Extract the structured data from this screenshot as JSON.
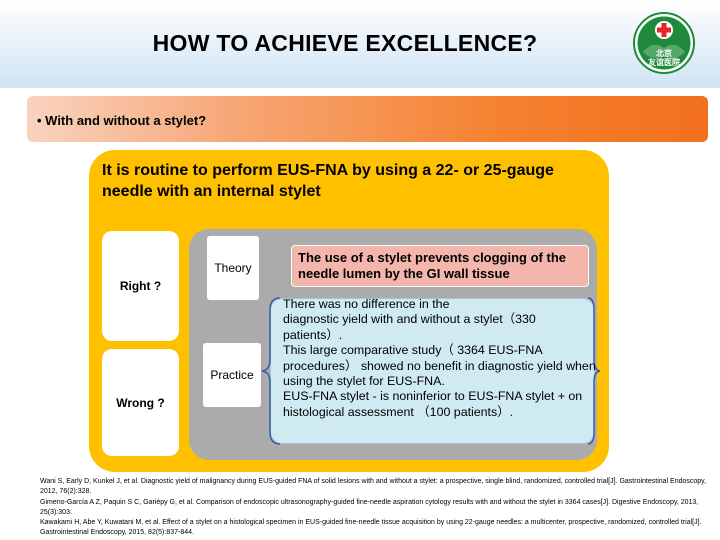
{
  "slide": {
    "title": "HOW TO ACHIEVE EXCELLENCE?",
    "logo": {
      "icon": "red-cross-hospital-logo",
      "text_line1": "北京",
      "text_line2": "友谊医院"
    },
    "bullet": "• With and without a stylet?",
    "routine_text": "It is routine to perform EUS-FNA by using a 22- or 25-gauge needle with an internal stylet",
    "right_label": "Right ?",
    "wrong_label": "Wrong ?",
    "theory_label": "Theory",
    "practice_label": "Practice",
    "theory_text": "The use of a stylet prevents clogging of the needle lumen by the GI wall tissue",
    "practice_text": "There was no difference in the\ndiagnostic yield with and without a stylet（330 patients）.\nThis large comparative study（ 3364 EUS-FNA procedures） showed no benefit in diagnostic yield when using the stylet for EUS-FNA.\nEUS-FNA stylet - is noninferior to EUS-FNA stylet + on histological assessment （100 patients）.",
    "references": [
      "Wani S, Early D, Kunkel J, et al. Diagnostic yield of malignancy during EUS-guided FNA of solid lesions with and without a stylet: a prospective, single blind, randomized, controlled trial[J]. Gastrointestinal Endoscopy, 2012, 76(2):328.",
      " Gimeno-García A Z, Paquin S C, Gariépy G, et al. Comparison of endoscopic ultrasonography-guided fine-needle aspiration cytology results with and without the stylet in 3364 cases[J]. Digestive Endoscopy, 2013, 25(3):303.",
      "Kawakami H, Abe Y, Kuwatani M, et al. Effect of a stylet on a histological specimen in EUS-guided  fine-needle tissue acquisition by using 22-gauge needles: a multicenter, prospective, randomized, controlled trial[J]. Gastrointestinal Endoscopy, 2015, 82(5):837-844."
    ],
    "colors": {
      "header_band": "#cfe3f3",
      "bullet_bar_orange": "#f27020",
      "gold_panel": "#ffc000",
      "gray_panel": "#ababab",
      "theory_pink": "#f4b6ac",
      "practice_cyan": "#cfeaf0",
      "logo_green": "#1f8a3c",
      "logo_red": "#e0262b"
    }
  }
}
